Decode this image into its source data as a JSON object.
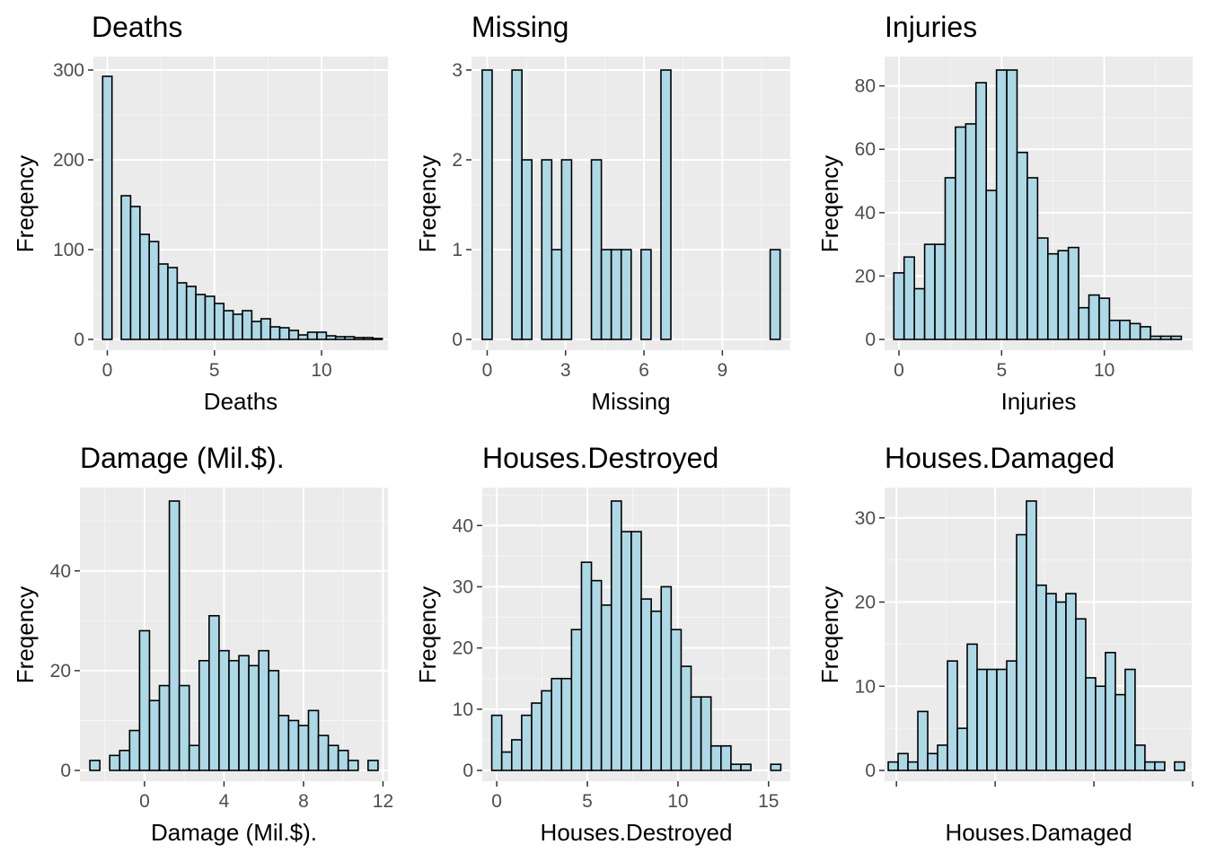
{
  "chart_data": [
    {
      "type": "bar",
      "title": "Deaths",
      "xlabel": "Deaths",
      "ylabel": "Freqency",
      "xlim": [
        -0.65,
        13.1
      ],
      "ylim": [
        0,
        300
      ],
      "binwidth": 0.435,
      "bin_centers": [
        0.0,
        0.435,
        0.87,
        1.305,
        1.74,
        2.175,
        2.61,
        3.045,
        3.48,
        3.915,
        4.35,
        4.785,
        5.22,
        5.655,
        6.09,
        6.525,
        6.96,
        7.395,
        7.83,
        8.265,
        8.7,
        9.135,
        9.57,
        10.005,
        10.44,
        10.875,
        11.31,
        11.745,
        12.18,
        12.615
      ],
      "values": [
        293,
        0,
        160,
        148,
        117,
        109,
        84,
        80,
        63,
        59,
        50,
        48,
        40,
        32,
        28,
        32,
        20,
        23,
        14,
        13,
        10,
        5,
        8,
        8,
        4,
        3,
        3,
        2,
        2,
        1
      ],
      "x_ticks": [
        0,
        5,
        10
      ],
      "y_ticks": [
        0,
        100,
        200,
        300
      ],
      "grid": true
    },
    {
      "type": "bar",
      "title": "Missing",
      "xlabel": "Missing",
      "ylabel": "Freqency",
      "xlim": [
        -0.6,
        11.6
      ],
      "ylim": [
        0,
        3
      ],
      "binwidth": 0.38,
      "bin_centers": [
        0.0,
        0.38,
        0.76,
        1.14,
        1.52,
        1.9,
        2.28,
        2.66,
        3.04,
        3.42,
        3.8,
        4.18,
        4.56,
        4.94,
        5.32,
        5.7,
        6.08,
        6.46,
        6.84,
        7.22,
        7.6,
        7.98,
        8.36,
        8.74,
        9.12,
        9.5,
        9.88,
        10.26,
        10.64,
        11.02
      ],
      "values": [
        3,
        0,
        0,
        3,
        2,
        0,
        2,
        1,
        2,
        0,
        0,
        2,
        1,
        1,
        1,
        0,
        1,
        0,
        3,
        0,
        0,
        0,
        0,
        0,
        0,
        0,
        0,
        0,
        0,
        1
      ],
      "x_ticks": [
        0,
        3,
        6,
        9
      ],
      "y_ticks": [
        0,
        1,
        2,
        3
      ],
      "grid": true
    },
    {
      "type": "bar",
      "title": "Injuries",
      "xlabel": "Injuries",
      "ylabel": "Freqency",
      "xlim": [
        -0.7,
        14.3
      ],
      "ylim": [
        0,
        85
      ],
      "binwidth": 0.5,
      "bin_centers": [
        0.0,
        0.5,
        1.0,
        1.5,
        2.0,
        2.5,
        3.0,
        3.5,
        4.0,
        4.5,
        5.0,
        5.5,
        6.0,
        6.5,
        7.0,
        7.5,
        8.0,
        8.5,
        9.0,
        9.5,
        10.0,
        10.5,
        11.0,
        11.5,
        12.0,
        12.5,
        13.0,
        13.5
      ],
      "values": [
        21,
        26,
        16,
        30,
        30,
        51,
        67,
        68,
        81,
        47,
        85,
        85,
        59,
        51,
        32,
        27,
        28,
        29,
        10,
        14,
        13,
        6,
        6,
        5,
        4,
        1,
        1,
        1
      ],
      "x_ticks": [
        0,
        5,
        10
      ],
      "y_ticks": [
        0,
        20,
        40,
        60,
        80
      ],
      "grid": true
    },
    {
      "type": "bar",
      "title": "Damage (Mil.$).",
      "xlabel": "Damage (Mil.$).",
      "ylabel": "Freqency",
      "xlim": [
        -3.25,
        12.25
      ],
      "ylim": [
        0,
        54
      ],
      "binwidth": 0.5,
      "bin_centers": [
        -2.5,
        -2.0,
        -1.5,
        -1.0,
        -0.5,
        0.0,
        0.5,
        1.0,
        1.5,
        2.0,
        2.5,
        3.0,
        3.5,
        4.0,
        4.5,
        5.0,
        5.5,
        6.0,
        6.5,
        7.0,
        7.5,
        8.0,
        8.5,
        9.0,
        9.5,
        10.0,
        10.5,
        11.0,
        11.5
      ],
      "values": [
        2,
        0,
        3,
        4,
        8,
        28,
        14,
        17,
        54,
        17,
        5,
        22,
        31,
        24,
        22,
        23,
        21,
        24,
        20,
        11,
        10,
        9,
        12,
        7,
        5,
        4,
        2,
        0,
        2
      ],
      "x_ticks": [
        0,
        4,
        8,
        12
      ],
      "y_ticks": [
        0,
        20,
        40
      ],
      "grid": true
    },
    {
      "type": "bar",
      "title": "Houses.Destroyed",
      "xlabel": "Houses.Destroyed",
      "ylabel": "Freqency",
      "xlim": [
        -0.8,
        16.2
      ],
      "ylim": [
        0,
        44
      ],
      "binwidth": 0.55,
      "bin_centers": [
        0.0,
        0.55,
        1.1,
        1.65,
        2.2,
        2.75,
        3.3,
        3.85,
        4.4,
        4.95,
        5.5,
        6.05,
        6.6,
        7.15,
        7.7,
        8.25,
        8.8,
        9.35,
        9.9,
        10.45,
        11.0,
        11.55,
        12.1,
        12.65,
        13.2,
        13.75,
        14.3,
        14.85,
        15.4
      ],
      "values": [
        9,
        3,
        5,
        9,
        11,
        13,
        15,
        15,
        23,
        34,
        31,
        27,
        44,
        39,
        39,
        28,
        26,
        30,
        23,
        17,
        12,
        12,
        4,
        4,
        1,
        1,
        0,
        0,
        1
      ],
      "x_ticks": [
        0,
        5,
        10,
        15
      ],
      "y_ticks": [
        0,
        10,
        20,
        30,
        40
      ],
      "grid": true
    },
    {
      "type": "bar",
      "title": "Houses.Damaged",
      "xlabel": "Houses.Damaged",
      "ylabel": "Freqency",
      "xlim": [
        -1.2,
        30.0
      ],
      "ylim": [
        0,
        32
      ],
      "binwidth": 1.0,
      "bin_centers": [
        -0.33,
        0.67,
        1.67,
        2.67,
        3.67,
        4.67,
        5.67,
        6.67,
        7.67,
        8.67,
        9.67,
        10.67,
        11.67,
        12.67,
        13.67,
        14.67,
        15.67,
        16.67,
        17.67,
        18.67,
        19.67,
        20.67,
        21.67,
        22.67,
        23.67,
        24.67,
        25.67,
        26.67,
        27.67,
        28.67
      ],
      "values": [
        1,
        2,
        1,
        7,
        2,
        3,
        13,
        5,
        15,
        12,
        12,
        12,
        13,
        28,
        32,
        22,
        21,
        20,
        21,
        18,
        11,
        10,
        14,
        9,
        12,
        3,
        1,
        1,
        0,
        1
      ],
      "x_ticks": [
        "",
        "",
        "",
        ""
      ],
      "x_tick_values": [
        0,
        10,
        20,
        30
      ],
      "y_ticks": [
        0,
        10,
        20,
        30
      ],
      "grid": true
    }
  ],
  "colors": {
    "panel_background": "#EBEBEB",
    "grid_major": "#FFFFFF",
    "bar_fill": "#ADD8E6",
    "bar_outline": "#000000",
    "tick_label": "#4D4D4D",
    "tick_mark": "#333333"
  }
}
